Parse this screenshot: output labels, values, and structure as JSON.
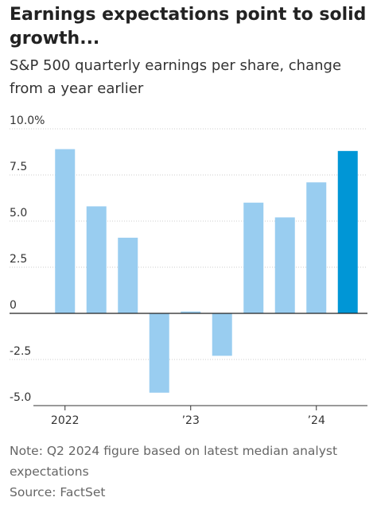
{
  "title": "Earnings expectations point to solid growth...",
  "subtitle": "S&P 500 quarterly earnings per share, change from a year earlier",
  "note": "Note: Q2 2024 figure based on latest median analyst expectations",
  "source": "Source: FactSet",
  "chart_data": {
    "type": "bar",
    "categories": [
      "2022",
      null,
      null,
      null,
      "’23",
      null,
      null,
      null,
      "’24",
      null
    ],
    "values": [
      8.9,
      5.8,
      4.1,
      -4.3,
      0.1,
      -2.3,
      6.0,
      5.2,
      7.1,
      8.8
    ],
    "colors": [
      "#99cdf0",
      "#99cdf0",
      "#99cdf0",
      "#99cdf0",
      "#99cdf0",
      "#99cdf0",
      "#99cdf0",
      "#99cdf0",
      "#99cdf0",
      "#0096d6"
    ],
    "ylim": [
      -5,
      10
    ],
    "yticks": [
      {
        "value": 10,
        "label": "10.0%"
      },
      7.5,
      {
        "value": 5,
        "label": "5.0"
      },
      2.5,
      0,
      -2.5,
      {
        "value": -5,
        "label": "-5.0"
      }
    ],
    "grid": true
  }
}
